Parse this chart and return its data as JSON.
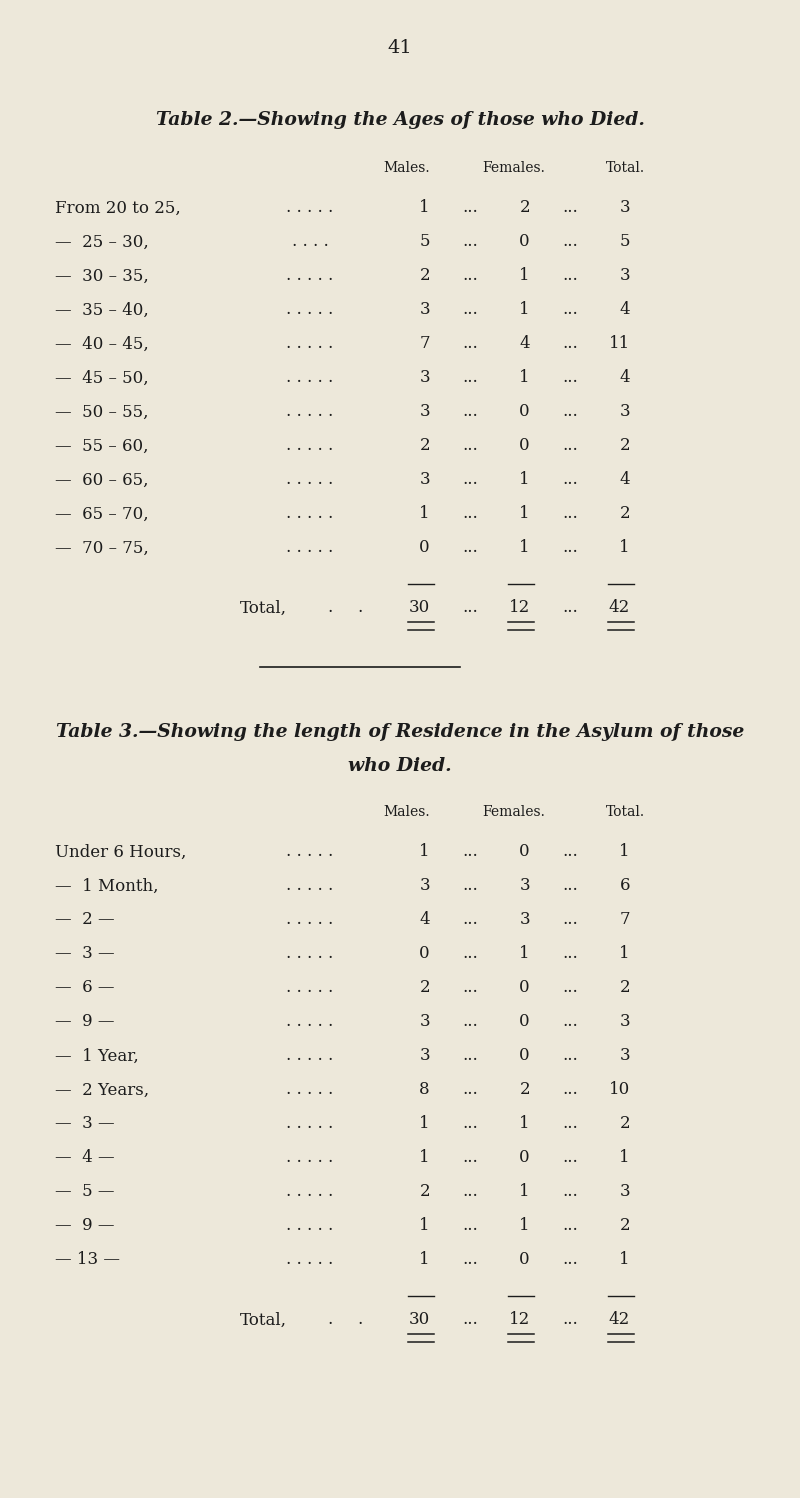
{
  "bg_color": "#ede8da",
  "page_number": "41",
  "table2_title": "Table 2.—Showing the Ages of those who Died.",
  "table2_rows": [
    [
      "From 20 to 25,",
      ". . . . .",
      "1",
      "...",
      "2",
      "...",
      "3"
    ],
    [
      "—  25 – 30,",
      ". . . .",
      "5",
      "...",
      "0",
      "...",
      "5"
    ],
    [
      "—  30 – 35,",
      ". . . . .",
      "2",
      "...",
      "1",
      "...",
      "3"
    ],
    [
      "—  35 – 40,",
      ". . . . .",
      "3",
      "...",
      "1",
      "...",
      "4"
    ],
    [
      "—  40 – 45,",
      ". . . . .",
      "7",
      "...",
      "4",
      "...",
      "11"
    ],
    [
      "—  45 – 50,",
      ". . . . .",
      "3",
      "...",
      "1",
      "...",
      "4"
    ],
    [
      "—  50 – 55,",
      ". . . . .",
      "3",
      "...",
      "0",
      "...",
      "3"
    ],
    [
      "—  55 – 60,",
      ". . . . .",
      "2",
      "...",
      "0",
      "...",
      "2"
    ],
    [
      "—  60 – 65,",
      ". . . . .",
      "3",
      "...",
      "1",
      "...",
      "4"
    ],
    [
      "—  65 – 70,",
      ". . . . .",
      "1",
      "...",
      "1",
      "...",
      "2"
    ],
    [
      "—  70 – 75,",
      ". . . . .",
      "0",
      "...",
      "1",
      "...",
      "1"
    ]
  ],
  "table2_total": [
    "30",
    "12",
    "42"
  ],
  "table3_title": "Table 3.—Showing the length of Residence in the Asylum of those",
  "table3_title2": "who Died.",
  "table3_rows": [
    [
      "Under 6 Hours,",
      ". . . . .",
      "1",
      "...",
      "0",
      "...",
      "1"
    ],
    [
      "—  1 Month,",
      ". . . . .",
      "3",
      "...",
      "3",
      "...",
      "6"
    ],
    [
      "—  2 —",
      ". . . . .",
      "4",
      "...",
      "3",
      "...",
      "7"
    ],
    [
      "—  3 —",
      ". . . . .",
      "0",
      "...",
      "1",
      "...",
      "1"
    ],
    [
      "—  6 —",
      ". . . . .",
      "2",
      "...",
      "0",
      "...",
      "2"
    ],
    [
      "—  9 —",
      ". . . . .",
      "3",
      "...",
      "0",
      "...",
      "3"
    ],
    [
      "—  1 Year,",
      ". . . . .",
      "3",
      "...",
      "0",
      "...",
      "3"
    ],
    [
      "—  2 Years,",
      ". . . . .",
      "8",
      "...",
      "2",
      "...",
      "10"
    ],
    [
      "—  3 —",
      ". . . . .",
      "1",
      "...",
      "1",
      "...",
      "2"
    ],
    [
      "—  4 —",
      ". . . . .",
      "1",
      "...",
      "0",
      "...",
      "1"
    ],
    [
      "—  5 —",
      ". . . . .",
      "2",
      "...",
      "1",
      "...",
      "3"
    ],
    [
      "—  9 —",
      ". . . . .",
      "1",
      "...",
      "1",
      "...",
      "2"
    ],
    [
      "— 13 —",
      ". . . . .",
      "1",
      "...",
      "0",
      "...",
      "1"
    ]
  ],
  "table3_total": [
    "30",
    "12",
    "42"
  ],
  "text_color": "#1c1c1c"
}
